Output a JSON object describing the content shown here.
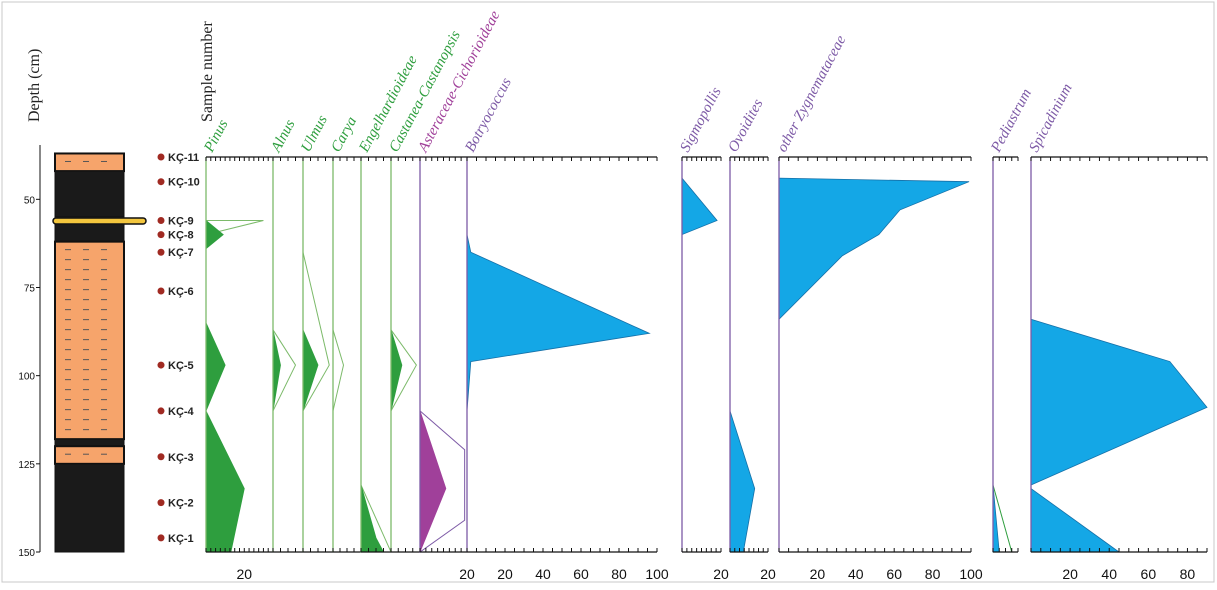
{
  "chart_data": {
    "type": "area",
    "headers": {
      "depth": "Depth (cm)",
      "sample": "Sample number"
    },
    "depth_axis": {
      "ticks": [
        50,
        75,
        100,
        125,
        150
      ],
      "range": [
        38,
        150
      ]
    },
    "samples": [
      {
        "id": "KÇ-11",
        "depth": 38
      },
      {
        "id": "KÇ-10",
        "depth": 45
      },
      {
        "id": "KÇ-9",
        "depth": 56
      },
      {
        "id": "KÇ-8",
        "depth": 60
      },
      {
        "id": "KÇ-7",
        "depth": 65
      },
      {
        "id": "KÇ-6",
        "depth": 76
      },
      {
        "id": "KÇ-5",
        "depth": 97
      },
      {
        "id": "KÇ-4",
        "depth": 110
      },
      {
        "id": "KÇ-3",
        "depth": 123
      },
      {
        "id": "KÇ-2",
        "depth": 136
      },
      {
        "id": "KÇ-1",
        "depth": 146
      }
    ],
    "lithology": [
      {
        "top": 37,
        "bottom": 42,
        "type": "sand"
      },
      {
        "top": 42,
        "bottom": 55,
        "type": "clay"
      },
      {
        "top": 55,
        "bottom": 57,
        "type": "lignite"
      },
      {
        "top": 57,
        "bottom": 62,
        "type": "clay"
      },
      {
        "top": 62,
        "bottom": 118,
        "type": "sand"
      },
      {
        "top": 118,
        "bottom": 120,
        "type": "clay"
      },
      {
        "top": 120,
        "bottom": 125,
        "type": "sand"
      },
      {
        "top": 125,
        "bottom": 150,
        "type": "clay"
      }
    ],
    "colors": {
      "pollen": "#2e9e3e",
      "pollen_exaggeration": "#2e9e3e",
      "herb": "#a0409a",
      "algae": "#14a7e6",
      "axis_green": "#7cba6a",
      "axis_purple": "#7d5aa6",
      "axis_black": "#111111",
      "sand": "#f6a46b",
      "clay": "#1a1a1a",
      "lignite": "#f3c63e"
    },
    "series": [
      {
        "name": "Pinus",
        "label_color": "#2e9e3e",
        "axis_color": "#7cba6a",
        "fill": "#2e9e3e",
        "xmax": 35,
        "ticks": [
          20
        ],
        "profile": [
          [
            56,
            0
          ],
          [
            60,
            9
          ],
          [
            64,
            0
          ],
          [
            70,
            0
          ],
          [
            85,
            0
          ],
          [
            97,
            10
          ],
          [
            110,
            0
          ],
          [
            132,
            20
          ],
          [
            150,
            13
          ]
        ],
        "exaggerated": [
          [
            56,
            30
          ],
          [
            60,
            0
          ],
          [
            64,
            0
          ],
          [
            85,
            0
          ],
          [
            97,
            0
          ],
          [
            150,
            0
          ],
          [
            150,
            0
          ]
        ]
      },
      {
        "name": "Alnus",
        "label_color": "#2e9e3e",
        "axis_color": "#7cba6a",
        "fill": "#2e9e3e",
        "xmax": 4,
        "ticks": [],
        "profile": [
          [
            87,
            0
          ],
          [
            97,
            1
          ],
          [
            110,
            0
          ]
        ],
        "exaggerated": [
          [
            87,
            0
          ],
          [
            97,
            3
          ],
          [
            110,
            0
          ]
        ]
      },
      {
        "name": "Ulmus",
        "label_color": "#2e9e3e",
        "axis_color": "#7cba6a",
        "fill": "#2e9e3e",
        "xmax": 4,
        "ticks": [],
        "profile": [
          [
            65,
            0
          ],
          [
            87,
            0
          ],
          [
            97,
            2
          ],
          [
            110,
            0
          ]
        ],
        "exaggerated": [
          [
            65,
            0
          ],
          [
            97,
            3.5
          ],
          [
            110,
            0
          ]
        ]
      },
      {
        "name": "Carya",
        "label_color": "#2e9e3e",
        "axis_color": "#7cba6a",
        "fill": "#2e9e3e",
        "xmax": 4,
        "ticks": [],
        "profile": [],
        "exaggerated": [
          [
            87,
            0
          ],
          [
            97,
            1.5
          ],
          [
            110,
            0
          ]
        ]
      },
      {
        "name": "Engelhardioideae",
        "label_color": "#2e9e3e",
        "axis_color": "#7cba6a",
        "fill": "#2e9e3e",
        "xmax": 4,
        "ticks": [],
        "profile": [
          [
            131,
            0
          ],
          [
            146,
            2
          ],
          [
            150,
            3
          ]
        ],
        "exaggerated": [
          [
            131,
            0
          ],
          [
            150,
            4
          ]
        ]
      },
      {
        "name": "Castanea-Castanopsis",
        "label_color": "#2e9e3e",
        "axis_color": "#7cba6a",
        "fill": "#2e9e3e",
        "xmax": 4,
        "ticks": [],
        "profile": [
          [
            87,
            0
          ],
          [
            97,
            1.5
          ],
          [
            110,
            0
          ]
        ],
        "exaggerated": [
          [
            87,
            0
          ],
          [
            97,
            3.5
          ],
          [
            110,
            0
          ]
        ]
      },
      {
        "name": "Asteraceae-Cichorioideae",
        "label_color": "#a0409a",
        "axis_color": "#7d5aa6",
        "fill": "#a0409a",
        "xmax": 20,
        "ticks": [
          20
        ],
        "profile": [
          [
            110,
            0
          ],
          [
            132,
            11
          ],
          [
            150,
            0
          ]
        ],
        "exaggerated": [
          [
            110,
            0
          ],
          [
            121,
            19
          ],
          [
            123,
            19
          ],
          [
            141,
            19
          ],
          [
            150,
            0
          ]
        ]
      },
      {
        "name": "Botryococcus",
        "label_color": "#7d5aa6",
        "axis_color": "#7d5aa6",
        "fill": "#14a7e6",
        "xmax": 100,
        "ticks": [
          20,
          40,
          60,
          80,
          100
        ],
        "profile": [
          [
            60,
            0
          ],
          [
            65,
            2
          ],
          [
            88,
            96
          ],
          [
            96,
            2
          ],
          [
            110,
            0
          ]
        ],
        "exaggerated": []
      },
      {
        "name": "Sigmopollis",
        "label_color": "#7d5aa6",
        "axis_color": "#7d5aa6",
        "fill": "#14a7e6",
        "xmax": 20,
        "ticks": [
          20
        ],
        "profile": [
          [
            44,
            0
          ],
          [
            56,
            18
          ],
          [
            60,
            0
          ]
        ],
        "exaggerated": []
      },
      {
        "name": "Ovoidites",
        "label_color": "#7d5aa6",
        "axis_color": "#7d5aa6",
        "fill": "#14a7e6",
        "xmax": 20,
        "ticks": [
          20
        ],
        "profile": [
          [
            110,
            0
          ],
          [
            132,
            13
          ],
          [
            150,
            7
          ]
        ],
        "exaggerated": []
      },
      {
        "name": "other Zygnemataceae",
        "label_color": "#7d5aa6",
        "axis_color": "#7d5aa6",
        "fill": "#14a7e6",
        "xmax": 100,
        "ticks": [
          20,
          40,
          60,
          80,
          100
        ],
        "profile": [
          [
            44,
            0
          ],
          [
            45,
            99
          ],
          [
            53,
            63
          ],
          [
            60,
            52
          ],
          [
            66,
            33
          ],
          [
            84,
            0
          ]
        ],
        "exaggerated": []
      },
      {
        "name": "Pediastrum",
        "label_color": "#7d5aa6",
        "axis_color": "#7d5aa6",
        "fill": "#14a7e6",
        "xmax": 4,
        "ticks": [],
        "profile": [
          [
            131,
            0
          ],
          [
            150,
            1
          ]
        ],
        "exaggerated": [
          [
            131,
            0
          ],
          [
            150,
            3
          ]
        ]
      },
      {
        "name": "Spicadinium",
        "label_color": "#7d5aa6",
        "axis_color": "#7d5aa6",
        "fill": "#14a7e6",
        "xmax": 90,
        "ticks": [
          20,
          40,
          60,
          80
        ],
        "profile": [
          [
            84,
            0
          ],
          [
            96,
            71
          ],
          [
            109,
            90
          ],
          [
            131,
            0
          ],
          [
            132,
            0
          ],
          [
            150,
            45
          ]
        ],
        "exaggerated": []
      }
    ]
  }
}
